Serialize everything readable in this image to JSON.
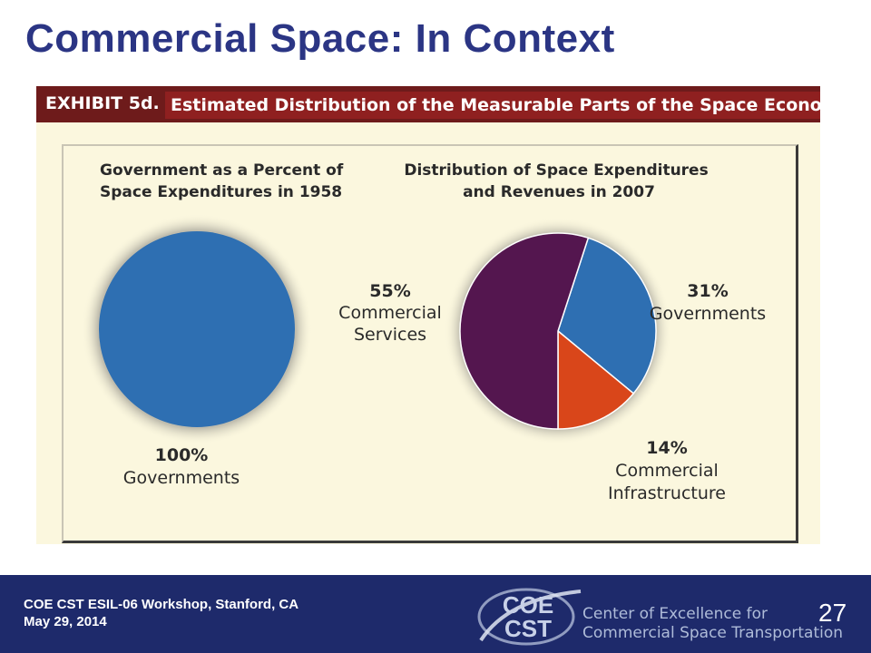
{
  "slide": {
    "title": "Commercial Space: In Context"
  },
  "exhibit": {
    "tag": "EXHIBIT 5d.",
    "title": "Estimated Distribution of the Measurable Parts of the Space Economy"
  },
  "chart_data": [
    {
      "type": "pie",
      "title_lines": [
        "Government as a Percent of",
        "Space Expenditures in 1958"
      ],
      "slices": [
        {
          "percent": 100,
          "value_label": "100%",
          "label": "Governments",
          "color": "#2e6fb2"
        }
      ]
    },
    {
      "type": "pie",
      "title_lines": [
        "Distribution of Space Expenditures",
        "and Revenues in 2007"
      ],
      "slices": [
        {
          "percent": 31,
          "value_label": "31%",
          "label_lines": [
            "Governments"
          ],
          "color": "#2e6fb2"
        },
        {
          "percent": 14,
          "value_label": "14%",
          "label_lines": [
            "Commercial",
            "Infrastructure"
          ],
          "color": "#d9461a"
        },
        {
          "percent": 55,
          "value_label": "55%",
          "label_lines": [
            "Commercial",
            "Services"
          ],
          "color": "#54164f"
        }
      ]
    }
  ],
  "footer": {
    "workshop": "COE CST ESIL-06 Workshop, Stanford, CA",
    "date": "May 29, 2014",
    "logo_mark_top": "COE",
    "logo_mark_bottom": "CST",
    "logo_line1": "Center of Excellence for",
    "logo_line2": "Commercial Space Transportation",
    "page_number": "27"
  }
}
